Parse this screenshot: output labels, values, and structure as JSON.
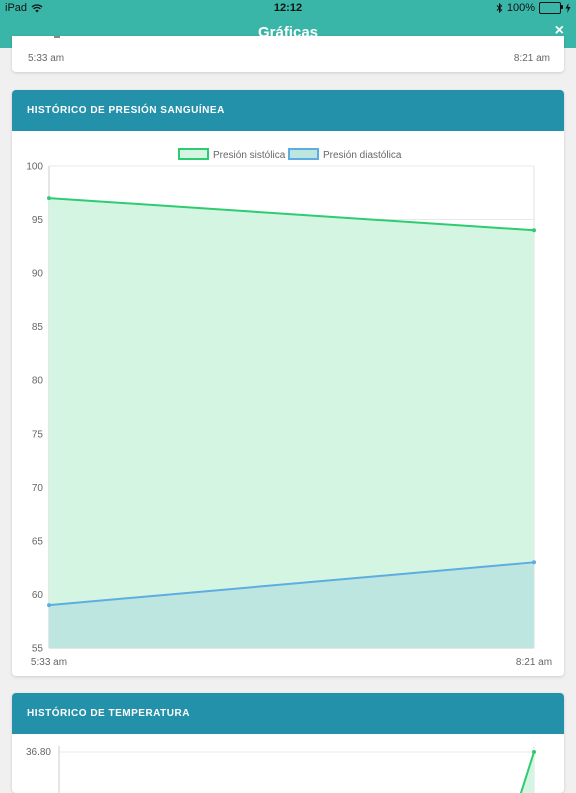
{
  "statusbar": {
    "device": "iPad",
    "time": "12:12",
    "battery": "100%"
  },
  "navbar": {
    "title": "Gráficas",
    "close": "×"
  },
  "top_chart": {
    "x_start": "5:33 am",
    "x_end": "8:21 am"
  },
  "blood_pressure": {
    "header": "HISTÓRICO DE PRESIÓN SANGUÍNEA",
    "colors": {
      "systolic": "#2ecc71",
      "systolic_fill": "#d4f5e2",
      "diastolic": "#5dade2",
      "diastolic_fill": "#bde6e0"
    }
  },
  "temperature": {
    "header": "HISTÓRICO DE TEMPERATURA",
    "colors": {
      "line": "#2ecc71"
    }
  },
  "chart_data": [
    {
      "type": "area",
      "title": "HISTÓRICO DE PRESIÓN SANGUÍNEA",
      "categories": [
        "5:33 am",
        "8:21 am"
      ],
      "series": [
        {
          "name": "Presión sistólica",
          "values": [
            97,
            94
          ]
        },
        {
          "name": "Presión diastólica",
          "values": [
            59,
            63
          ]
        }
      ],
      "ylim": [
        55,
        100
      ],
      "yticks": [
        100,
        95,
        90,
        85,
        80,
        75,
        70,
        65,
        60,
        55
      ],
      "grid": true,
      "legend": "top"
    },
    {
      "type": "line",
      "title": "HISTÓRICO DE TEMPERATURA",
      "ytick_top": "36.80",
      "legend": "none"
    }
  ]
}
